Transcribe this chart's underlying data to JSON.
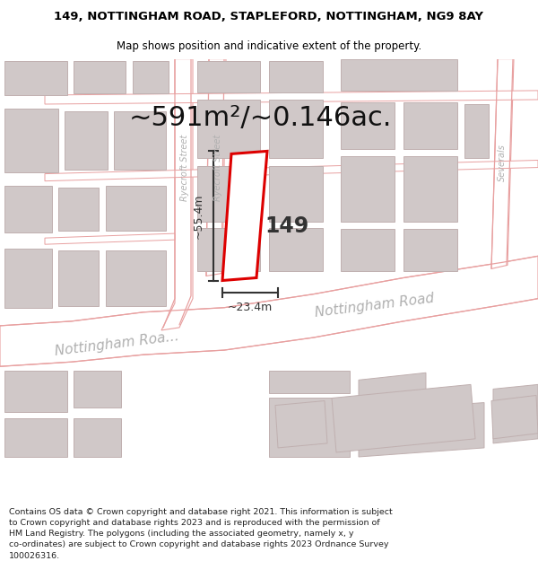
{
  "title": "149, NOTTINGHAM ROAD, STAPLEFORD, NOTTINGHAM, NG9 8AY",
  "subtitle": "Map shows position and indicative extent of the property.",
  "area_text": "~591m²/~0.146ac.",
  "label_149": "149",
  "dim_height": "~55.4m",
  "dim_width": "~23.4m",
  "footer_lines": [
    "Contains OS data © Crown copyright and database right 2021. This information is subject",
    "to Crown copyright and database rights 2023 and is reproduced with the permission of",
    "HM Land Registry. The polygons (including the associated geometry, namely x, y",
    "co-ordinates) are subject to Crown copyright and database rights 2023 Ordnance Survey",
    "100026316."
  ],
  "map_bg": "#f8f3f3",
  "road_line_color": "#e8a0a0",
  "road_fill": "#ffffff",
  "building_fill": "#d8d0d0",
  "building_edge": "#c8b8b8",
  "property_fill": "#ffffff",
  "property_edge": "#dd0000",
  "dim_color": "#333333",
  "road_label_color": "#b0b0b0",
  "title_fontsize": 9.5,
  "subtitle_fontsize": 8.5,
  "area_fontsize": 22,
  "label_fontsize": 17,
  "dim_fontsize": 9,
  "road_label_fontsize": 11,
  "footer_fontsize": 6.8,
  "street_label_fontsize": 7
}
